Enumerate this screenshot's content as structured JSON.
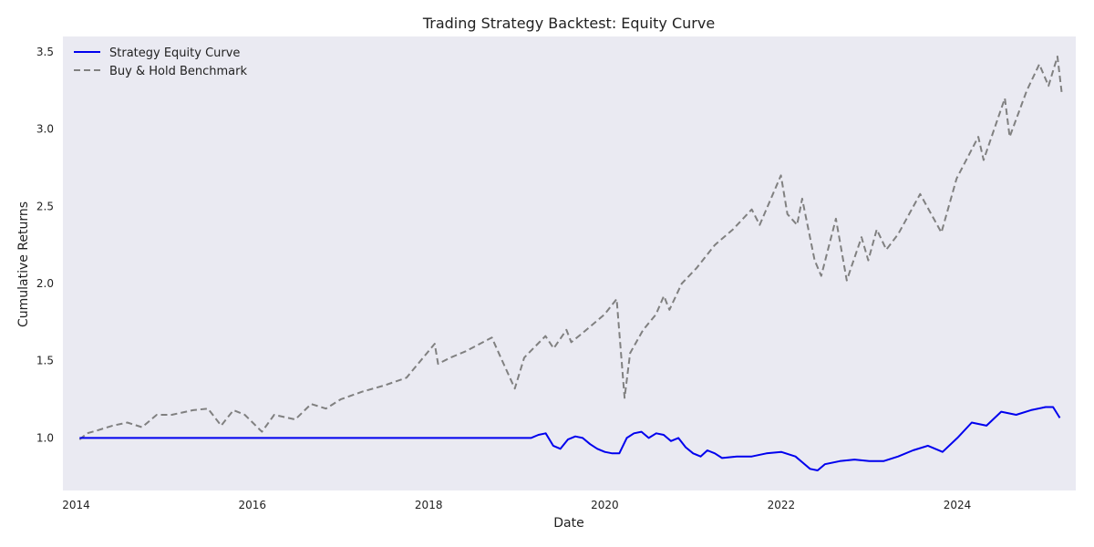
{
  "chart_data": {
    "type": "line",
    "title": "Trading Strategy Backtest: Equity Curve",
    "xlabel": "Date",
    "ylabel": "Cumulative Returns",
    "xlim": [
      "2013-11-07",
      "2025-05-06"
    ],
    "ylim": [
      0.66,
      3.6
    ],
    "x_ticks": [
      "2014",
      "2016",
      "2018",
      "2020",
      "2022",
      "2024"
    ],
    "y_ticks": [
      "1.0",
      "1.5",
      "2.0",
      "2.5",
      "3.0",
      "3.5"
    ],
    "grid": false,
    "legend_position": "top-left",
    "background_color": "#eaeaf2",
    "series": [
      {
        "name": "Strategy Equity Curve",
        "color": "#0000ee",
        "style": "solid",
        "points": [
          [
            "2014-01-15",
            1.0
          ],
          [
            "2019-03-01",
            1.0
          ],
          [
            "2019-04-01",
            1.02
          ],
          [
            "2019-05-01",
            1.03
          ],
          [
            "2019-06-01",
            0.95
          ],
          [
            "2019-07-01",
            0.93
          ],
          [
            "2019-08-01",
            0.99
          ],
          [
            "2019-09-01",
            1.01
          ],
          [
            "2019-10-01",
            1.0
          ],
          [
            "2019-11-01",
            0.96
          ],
          [
            "2019-12-01",
            0.93
          ],
          [
            "2020-01-01",
            0.91
          ],
          [
            "2020-02-01",
            0.9
          ],
          [
            "2020-03-01",
            0.9
          ],
          [
            "2020-04-01",
            1.0
          ],
          [
            "2020-05-01",
            1.03
          ],
          [
            "2020-06-01",
            1.04
          ],
          [
            "2020-07-01",
            1.0
          ],
          [
            "2020-08-01",
            1.03
          ],
          [
            "2020-09-01",
            1.02
          ],
          [
            "2020-10-01",
            0.98
          ],
          [
            "2020-11-01",
            1.0
          ],
          [
            "2020-12-01",
            0.94
          ],
          [
            "2021-01-01",
            0.9
          ],
          [
            "2021-02-01",
            0.88
          ],
          [
            "2021-03-01",
            0.92
          ],
          [
            "2021-04-01",
            0.9
          ],
          [
            "2021-05-01",
            0.87
          ],
          [
            "2021-07-01",
            0.88
          ],
          [
            "2021-09-01",
            0.88
          ],
          [
            "2021-11-01",
            0.9
          ],
          [
            "2022-01-01",
            0.91
          ],
          [
            "2022-03-01",
            0.88
          ],
          [
            "2022-05-01",
            0.8
          ],
          [
            "2022-06-01",
            0.79
          ],
          [
            "2022-07-01",
            0.83
          ],
          [
            "2022-09-01",
            0.85
          ],
          [
            "2022-11-01",
            0.86
          ],
          [
            "2023-01-01",
            0.85
          ],
          [
            "2023-03-01",
            0.85
          ],
          [
            "2023-05-01",
            0.88
          ],
          [
            "2023-07-01",
            0.92
          ],
          [
            "2023-09-01",
            0.95
          ],
          [
            "2023-11-01",
            0.91
          ],
          [
            "2024-01-01",
            1.0
          ],
          [
            "2024-03-01",
            1.1
          ],
          [
            "2024-05-01",
            1.08
          ],
          [
            "2024-07-01",
            1.17
          ],
          [
            "2024-09-01",
            1.15
          ],
          [
            "2024-11-01",
            1.18
          ],
          [
            "2025-01-01",
            1.2
          ],
          [
            "2025-02-01",
            1.2
          ],
          [
            "2025-03-01",
            1.13
          ]
        ]
      },
      {
        "name": "Buy & Hold Benchmark",
        "color": "#808080",
        "style": "dashed",
        "points": [
          [
            "2014-01-15",
            0.99
          ],
          [
            "2014-02-15",
            1.03
          ],
          [
            "2014-04-01",
            1.05
          ],
          [
            "2014-06-01",
            1.08
          ],
          [
            "2014-08-01",
            1.1
          ],
          [
            "2014-10-01",
            1.07
          ],
          [
            "2014-12-01",
            1.15
          ],
          [
            "2015-02-01",
            1.15
          ],
          [
            "2015-05-01",
            1.18
          ],
          [
            "2015-07-01",
            1.19
          ],
          [
            "2015-08-25",
            1.08
          ],
          [
            "2015-10-15",
            1.18
          ],
          [
            "2015-12-01",
            1.15
          ],
          [
            "2016-02-10",
            1.04
          ],
          [
            "2016-04-01",
            1.15
          ],
          [
            "2016-06-27",
            1.12
          ],
          [
            "2016-09-01",
            1.22
          ],
          [
            "2016-11-01",
            1.19
          ],
          [
            "2017-01-01",
            1.25
          ],
          [
            "2017-04-01",
            1.3
          ],
          [
            "2017-07-01",
            1.34
          ],
          [
            "2017-10-01",
            1.39
          ],
          [
            "2018-01-26",
            1.61
          ],
          [
            "2018-02-09",
            1.48
          ],
          [
            "2018-04-01",
            1.52
          ],
          [
            "2018-06-01",
            1.56
          ],
          [
            "2018-09-20",
            1.65
          ],
          [
            "2018-10-30",
            1.51
          ],
          [
            "2018-12-24",
            1.32
          ],
          [
            "2019-02-01",
            1.52
          ],
          [
            "2019-04-30",
            1.66
          ],
          [
            "2019-06-03",
            1.58
          ],
          [
            "2019-07-26",
            1.7
          ],
          [
            "2019-08-15",
            1.62
          ],
          [
            "2019-10-01",
            1.68
          ],
          [
            "2019-12-31",
            1.8
          ],
          [
            "2020-02-19",
            1.9
          ],
          [
            "2020-03-23",
            1.26
          ],
          [
            "2020-04-15",
            1.55
          ],
          [
            "2020-06-08",
            1.7
          ],
          [
            "2020-07-31",
            1.8
          ],
          [
            "2020-09-02",
            1.92
          ],
          [
            "2020-09-25",
            1.83
          ],
          [
            "2020-11-15",
            2.0
          ],
          [
            "2021-01-15",
            2.1
          ],
          [
            "2021-04-01",
            2.25
          ],
          [
            "2021-06-15",
            2.35
          ],
          [
            "2021-09-01",
            2.48
          ],
          [
            "2021-10-04",
            2.38
          ],
          [
            "2021-12-31",
            2.7
          ],
          [
            "2022-01-27",
            2.45
          ],
          [
            "2022-03-08",
            2.38
          ],
          [
            "2022-03-29",
            2.55
          ],
          [
            "2022-05-20",
            2.15
          ],
          [
            "2022-06-16",
            2.05
          ],
          [
            "2022-08-16",
            2.42
          ],
          [
            "2022-09-30",
            2.02
          ],
          [
            "2022-11-30",
            2.3
          ],
          [
            "2022-12-28",
            2.15
          ],
          [
            "2023-02-01",
            2.35
          ],
          [
            "2023-03-13",
            2.22
          ],
          [
            "2023-05-01",
            2.32
          ],
          [
            "2023-07-31",
            2.58
          ],
          [
            "2023-10-27",
            2.33
          ],
          [
            "2023-12-29",
            2.68
          ],
          [
            "2024-03-28",
            2.95
          ],
          [
            "2024-04-19",
            2.8
          ],
          [
            "2024-07-16",
            3.2
          ],
          [
            "2024-08-05",
            2.95
          ],
          [
            "2024-10-15",
            3.25
          ],
          [
            "2024-12-06",
            3.42
          ],
          [
            "2025-01-13",
            3.28
          ],
          [
            "2025-02-19",
            3.47
          ],
          [
            "2025-03-10",
            3.22
          ]
        ]
      }
    ]
  }
}
